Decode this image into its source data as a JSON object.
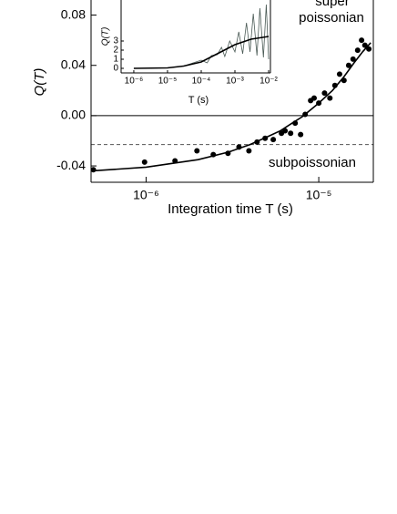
{
  "chart_data": [
    {
      "type": "scatter",
      "log_x": true,
      "xlabel": "Integration time  T (s)",
      "ylabel": "Q(T)",
      "xlim": [
        4.8e-07,
        2.07e-05
      ],
      "ylim": [
        -0.053,
        0.092
      ],
      "xticks": [
        {
          "value": 1e-06,
          "label": "10⁻⁶"
        },
        {
          "value": 1e-05,
          "label": "10⁻⁵"
        }
      ],
      "yticks": [
        0.08,
        0.04,
        {
          "value": 0,
          "label": "0.00"
        },
        -0.04
      ],
      "hlines": [
        {
          "value": 0,
          "dashed": false
        },
        {
          "value": -0.023,
          "dashed": true
        }
      ],
      "annotations": [
        "super",
        "poissonian",
        "subpoissonian"
      ],
      "series": [
        {
          "style": "markers",
          "color": "#000000",
          "x": [
            4.95e-07,
            9.8e-07,
            1.47e-06,
            1.97e-06,
            2.45e-06,
            2.98e-06,
            3.45e-06,
            3.94e-06,
            4.39e-06,
            4.89e-06,
            5.45e-06,
            6.08e-06,
            6.38e-06,
            6.87e-06,
            7.3e-06,
            7.85e-06,
            8.34e-06,
            8.97e-06,
            9.4e-06,
            1e-05,
            1.08e-05,
            1.16e-05,
            1.24e-05,
            1.32e-05,
            1.4e-05,
            1.49e-05,
            1.58e-05,
            1.68e-05,
            1.77e-05,
            1.85e-05,
            1.95e-05
          ],
          "values": [
            -0.043,
            -0.037,
            -0.036,
            -0.028,
            -0.031,
            -0.03,
            -0.025,
            -0.028,
            -0.021,
            -0.018,
            -0.019,
            -0.014,
            -0.012,
            -0.014,
            -0.006,
            -0.015,
            0.001,
            0.012,
            0.014,
            0.01,
            0.018,
            0.014,
            0.024,
            0.033,
            0.028,
            0.04,
            0.045,
            0.052,
            0.06,
            0.056,
            0.053
          ]
        },
        {
          "style": "line",
          "color": "#000000",
          "x": [
            4.8e-07,
            1e-06,
            2e-06,
            3e-06,
            4e-06,
            5e-06,
            6e-06,
            7e-06,
            8e-06,
            1e-05,
            1.2e-05,
            1.4e-05,
            1.6e-05,
            1.8e-05,
            2e-05
          ],
          "values": [
            -0.044,
            -0.041,
            -0.035,
            -0.029,
            -0.023,
            -0.017,
            -0.012,
            -0.006,
            -0.001,
            0.01,
            0.02,
            0.031,
            0.042,
            0.051,
            0.058
          ]
        }
      ]
    },
    {
      "type": "line",
      "log_x": true,
      "xlabel": "T (s)",
      "ylabel": "Q(T)",
      "xlim": [
        4.2e-07,
        0.0113
      ],
      "ylim": [
        -0.5,
        7.5
      ],
      "xticks": [
        {
          "value": 1e-06,
          "label": "10⁻⁶"
        },
        {
          "value": 1e-05,
          "label": "10⁻⁵"
        },
        {
          "value": 0.0001,
          "label": "10⁻⁴"
        },
        {
          "value": 0.001,
          "label": "10⁻³"
        },
        {
          "value": 0.01,
          "label": "10⁻²"
        }
      ],
      "yticks": [
        0,
        1,
        2,
        3
      ],
      "series": [
        {
          "style": "line",
          "color": "#4a5a55",
          "x": [
            1e-06,
            1e-05,
            3e-05,
            0.0001,
            0.00015,
            0.0002,
            0.0003,
            0.0004,
            0.0005,
            0.0007,
            0.001,
            0.0013,
            0.0017,
            0.0022,
            0.0028,
            0.0035,
            0.0045,
            0.0055,
            0.007,
            0.0085,
            0.01
          ],
          "values": [
            0,
            0.05,
            0.25,
            0.9,
            0.6,
            1.4,
            1.5,
            2.3,
            1.3,
            3.0,
            1.8,
            4.0,
            1.6,
            5.0,
            1.8,
            6.0,
            1.4,
            6.6,
            1.2,
            7.0,
            1.0
          ]
        },
        {
          "style": "line",
          "color": "#000000",
          "x": [
            1e-06,
            1e-05,
            3e-05,
            0.0001,
            0.0003,
            0.001,
            0.003,
            0.01
          ],
          "values": [
            0,
            0.05,
            0.25,
            0.7,
            1.6,
            2.6,
            3.2,
            3.5
          ]
        }
      ]
    }
  ]
}
